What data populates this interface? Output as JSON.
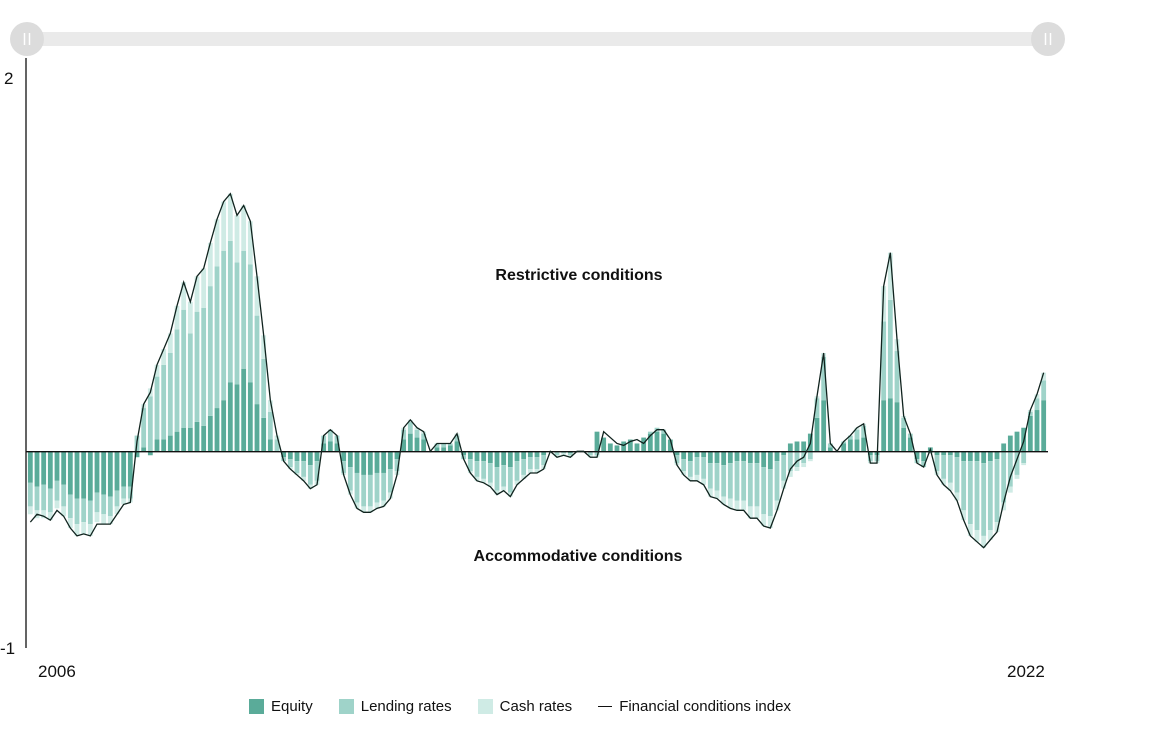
{
  "colors": {
    "equity": "#5aab99",
    "lending": "#9fd3c9",
    "cash": "#cfebe5",
    "line": "#10231e",
    "slider": "#eaeaea",
    "handle": "#dcdcdc"
  },
  "chart_data": {
    "type": "bar",
    "subtype": "stacked bar with line overlay",
    "title": "",
    "xlabel": "",
    "ylabel": "",
    "ylim": [
      -1,
      2
    ],
    "yticks": [
      -1,
      2
    ],
    "xticks": [
      "2006",
      "2022"
    ],
    "grid": false,
    "legend_position": "bottom",
    "annotations": [
      "Restrictive conditions",
      "Accommodative conditions"
    ],
    "series": [
      {
        "name": "Equity",
        "color": "#5aab99",
        "values": [
          -0.16,
          -0.18,
          -0.17,
          -0.19,
          -0.15,
          -0.17,
          -0.22,
          -0.24,
          -0.24,
          -0.25,
          -0.21,
          -0.22,
          -0.23,
          -0.2,
          -0.18,
          -0.18,
          -0.03,
          0.02,
          -0.02,
          0.06,
          0.06,
          0.08,
          0.1,
          0.12,
          0.12,
          0.15,
          0.13,
          0.18,
          0.22,
          0.26,
          0.35,
          0.34,
          0.42,
          0.35,
          0.24,
          0.17,
          0.06,
          0.0,
          -0.03,
          -0.04,
          -0.05,
          -0.05,
          -0.07,
          -0.05,
          0.04,
          0.05,
          0.04,
          -0.05,
          -0.08,
          -0.11,
          -0.12,
          -0.12,
          -0.11,
          -0.11,
          -0.09,
          -0.04,
          0.06,
          0.09,
          0.07,
          0.06,
          0.0,
          0.02,
          0.02,
          0.03,
          0.05,
          -0.02,
          -0.04,
          -0.05,
          -0.05,
          -0.06,
          -0.08,
          -0.07,
          -0.08,
          -0.05,
          -0.04,
          -0.03,
          -0.03,
          -0.02,
          0.0,
          0.0,
          0.0,
          -0.01,
          0.0,
          0.0,
          0.0,
          0.1,
          0.07,
          0.04,
          0.03,
          0.05,
          0.06,
          0.04,
          0.07,
          0.09,
          0.1,
          0.09,
          0.06,
          -0.02,
          -0.04,
          -0.05,
          -0.03,
          -0.03,
          -0.06,
          -0.06,
          -0.07,
          -0.06,
          -0.05,
          -0.05,
          -0.06,
          -0.06,
          -0.08,
          -0.09,
          -0.05,
          -0.02,
          0.04,
          0.05,
          0.05,
          0.09,
          0.17,
          0.26,
          0.02,
          0.0,
          0.04,
          0.06,
          0.06,
          0.07,
          -0.02,
          -0.02,
          0.26,
          0.27,
          0.25,
          0.12,
          0.07,
          -0.04,
          -0.05,
          0.02,
          -0.02,
          -0.02,
          -0.02,
          -0.03,
          -0.05,
          -0.05,
          -0.05,
          -0.06,
          -0.05,
          -0.04,
          0.04,
          0.08,
          0.1,
          0.12,
          0.18,
          0.21,
          0.26
        ]
      },
      {
        "name": "Lending rates",
        "color": "#9fd3c9",
        "values": [
          -0.12,
          -0.12,
          -0.13,
          -0.12,
          -0.1,
          -0.11,
          -0.12,
          -0.13,
          -0.12,
          -0.12,
          -0.1,
          -0.1,
          -0.1,
          -0.08,
          -0.06,
          -0.06,
          0.08,
          0.2,
          0.28,
          0.32,
          0.38,
          0.42,
          0.52,
          0.6,
          0.48,
          0.56,
          0.6,
          0.66,
          0.72,
          0.76,
          0.72,
          0.62,
          0.6,
          0.6,
          0.45,
          0.3,
          0.14,
          0.06,
          -0.02,
          -0.04,
          -0.06,
          -0.08,
          -0.1,
          -0.1,
          0.04,
          0.06,
          0.04,
          -0.06,
          -0.12,
          -0.15,
          -0.16,
          -0.16,
          -0.15,
          -0.14,
          -0.12,
          -0.06,
          0.05,
          0.06,
          0.04,
          0.03,
          0.0,
          0.02,
          0.02,
          0.01,
          0.03,
          -0.02,
          -0.06,
          -0.08,
          -0.09,
          -0.1,
          -0.12,
          -0.11,
          -0.13,
          -0.1,
          -0.08,
          -0.06,
          -0.06,
          -0.05,
          0.0,
          -0.02,
          -0.01,
          -0.01,
          0.0,
          0.0,
          -0.02,
          -0.02,
          0.0,
          0.0,
          0.0,
          0.0,
          0.0,
          0.0,
          0.0,
          0.01,
          0.02,
          0.02,
          0.0,
          -0.04,
          -0.06,
          -0.08,
          -0.09,
          -0.11,
          -0.13,
          -0.14,
          -0.16,
          -0.18,
          -0.2,
          -0.2,
          -0.22,
          -0.22,
          -0.24,
          -0.24,
          -0.2,
          -0.13,
          -0.1,
          -0.08,
          -0.06,
          -0.04,
          0.1,
          0.22,
          0.02,
          0.0,
          0.01,
          0.02,
          0.05,
          0.06,
          -0.03,
          -0.03,
          0.4,
          0.5,
          0.26,
          0.05,
          0.02,
          -0.02,
          -0.03,
          -0.01,
          -0.08,
          -0.12,
          -0.14,
          -0.18,
          -0.25,
          -0.32,
          -0.35,
          -0.37,
          -0.35,
          -0.32,
          -0.26,
          -0.18,
          -0.12,
          -0.06,
          0.02,
          0.06,
          0.1
        ]
      },
      {
        "name": "Cash rates",
        "color": "#cfebe5",
        "values": [
          -0.04,
          -0.04,
          -0.04,
          -0.04,
          -0.04,
          -0.05,
          -0.05,
          -0.06,
          -0.06,
          -0.06,
          -0.05,
          -0.05,
          -0.04,
          -0.04,
          -0.03,
          -0.02,
          0.0,
          0.02,
          0.04,
          0.06,
          0.08,
          0.1,
          0.12,
          0.14,
          0.16,
          0.18,
          0.2,
          0.22,
          0.24,
          0.25,
          0.24,
          0.24,
          0.23,
          0.22,
          0.2,
          0.12,
          0.06,
          0.02,
          0.0,
          -0.01,
          -0.01,
          -0.02,
          -0.02,
          -0.02,
          0.0,
          0.0,
          0.0,
          -0.01,
          -0.02,
          -0.03,
          -0.03,
          -0.03,
          -0.03,
          -0.03,
          -0.03,
          -0.02,
          0.01,
          0.01,
          0.01,
          0.01,
          0.0,
          0.0,
          0.0,
          0.0,
          0.01,
          0.0,
          -0.01,
          -0.02,
          -0.02,
          -0.02,
          -0.02,
          -0.02,
          -0.02,
          -0.02,
          -0.02,
          -0.02,
          -0.02,
          -0.02,
          0.0,
          -0.01,
          -0.01,
          -0.01,
          0.0,
          0.0,
          -0.01,
          -0.01,
          0.0,
          0.0,
          0.0,
          0.0,
          0.0,
          0.0,
          0.0,
          0.0,
          0.0,
          0.0,
          0.0,
          -0.01,
          -0.02,
          -0.02,
          -0.03,
          -0.03,
          -0.04,
          -0.04,
          -0.04,
          -0.05,
          -0.05,
          -0.05,
          -0.06,
          -0.06,
          -0.06,
          -0.06,
          -0.05,
          -0.04,
          -0.03,
          -0.02,
          -0.02,
          -0.01,
          0.01,
          0.02,
          0.0,
          0.0,
          0.0,
          0.0,
          0.01,
          0.01,
          -0.01,
          -0.01,
          0.18,
          0.24,
          0.06,
          0.01,
          0.0,
          0.0,
          0.0,
          0.0,
          -0.02,
          -0.03,
          -0.04,
          -0.04,
          -0.05,
          -0.06,
          -0.06,
          -0.06,
          -0.05,
          -0.05,
          -0.04,
          -0.03,
          -0.02,
          -0.01,
          0.01,
          0.02,
          0.04
        ]
      },
      {
        "name": "Financial conditions index",
        "type": "line",
        "color": "#10231e",
        "values": [
          -0.36,
          -0.32,
          -0.33,
          -0.35,
          -0.3,
          -0.33,
          -0.39,
          -0.43,
          -0.42,
          -0.43,
          -0.37,
          -0.37,
          -0.37,
          -0.32,
          -0.27,
          -0.26,
          0.05,
          0.24,
          0.3,
          0.44,
          0.52,
          0.6,
          0.74,
          0.86,
          0.76,
          0.89,
          0.93,
          1.06,
          1.18,
          1.27,
          1.31,
          1.2,
          1.25,
          1.17,
          0.89,
          0.59,
          0.26,
          0.08,
          -0.05,
          -0.09,
          -0.12,
          -0.15,
          -0.19,
          -0.17,
          0.08,
          0.11,
          0.08,
          -0.12,
          -0.22,
          -0.29,
          -0.31,
          -0.31,
          -0.29,
          -0.28,
          -0.24,
          -0.12,
          0.12,
          0.16,
          0.12,
          0.1,
          0.0,
          0.04,
          0.04,
          0.04,
          0.09,
          -0.04,
          -0.11,
          -0.15,
          -0.16,
          -0.18,
          -0.22,
          -0.2,
          -0.23,
          -0.17,
          -0.14,
          -0.11,
          -0.11,
          -0.09,
          0.0,
          -0.03,
          -0.02,
          -0.03,
          0.0,
          0.0,
          -0.03,
          -0.03,
          0.1,
          0.07,
          0.04,
          0.03,
          0.05,
          0.06,
          0.04,
          0.08,
          0.11,
          0.11,
          0.06,
          -0.07,
          -0.12,
          -0.15,
          -0.15,
          -0.17,
          -0.23,
          -0.24,
          -0.27,
          -0.29,
          -0.3,
          -0.3,
          -0.34,
          -0.34,
          -0.38,
          -0.39,
          -0.3,
          -0.19,
          -0.09,
          -0.05,
          -0.03,
          0.04,
          0.28,
          0.5,
          0.04,
          0.0,
          0.05,
          0.08,
          0.12,
          0.14,
          -0.06,
          -0.06,
          0.84,
          1.01,
          0.57,
          0.18,
          0.09,
          -0.06,
          -0.08,
          0.01,
          -0.12,
          -0.17,
          -0.2,
          -0.25,
          -0.35,
          -0.43,
          -0.46,
          -0.49,
          -0.45,
          -0.41,
          -0.26,
          -0.13,
          -0.04,
          0.05,
          0.21,
          0.29,
          0.4
        ]
      }
    ]
  },
  "legend": {
    "equity": "Equity",
    "lending": "Lending rates",
    "cash": "Cash rates",
    "line": "Financial conditions index"
  }
}
